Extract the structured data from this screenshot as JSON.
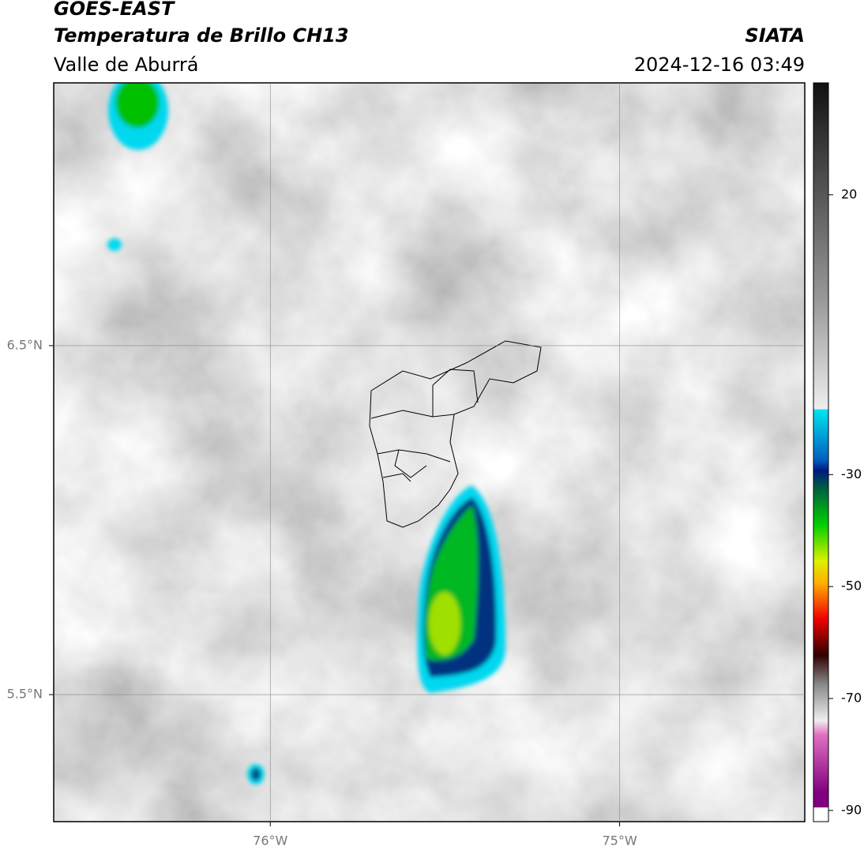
{
  "header": {
    "title": "GOES-EAST",
    "subtitle": "Temperatura de Brillo CH13",
    "region": "Valle de Aburrá",
    "source": "SIATA",
    "datetime": "2024-12-16 03:49"
  },
  "map": {
    "xlim": [
      -76.62,
      -74.47
    ],
    "ylim": [
      5.136,
      7.253
    ],
    "xticks": [
      {
        "value": -76,
        "label": "76°W"
      },
      {
        "value": -75,
        "label": "75°W"
      }
    ],
    "yticks": [
      {
        "value": 6.5,
        "label": "6.5°N"
      },
      {
        "value": 5.5,
        "label": "5.5°N"
      }
    ],
    "grid": true
  },
  "colorbar": {
    "lim": [
      -92,
      40
    ],
    "ticks": [
      20,
      -30,
      -50,
      -70,
      -90
    ]
  }
}
